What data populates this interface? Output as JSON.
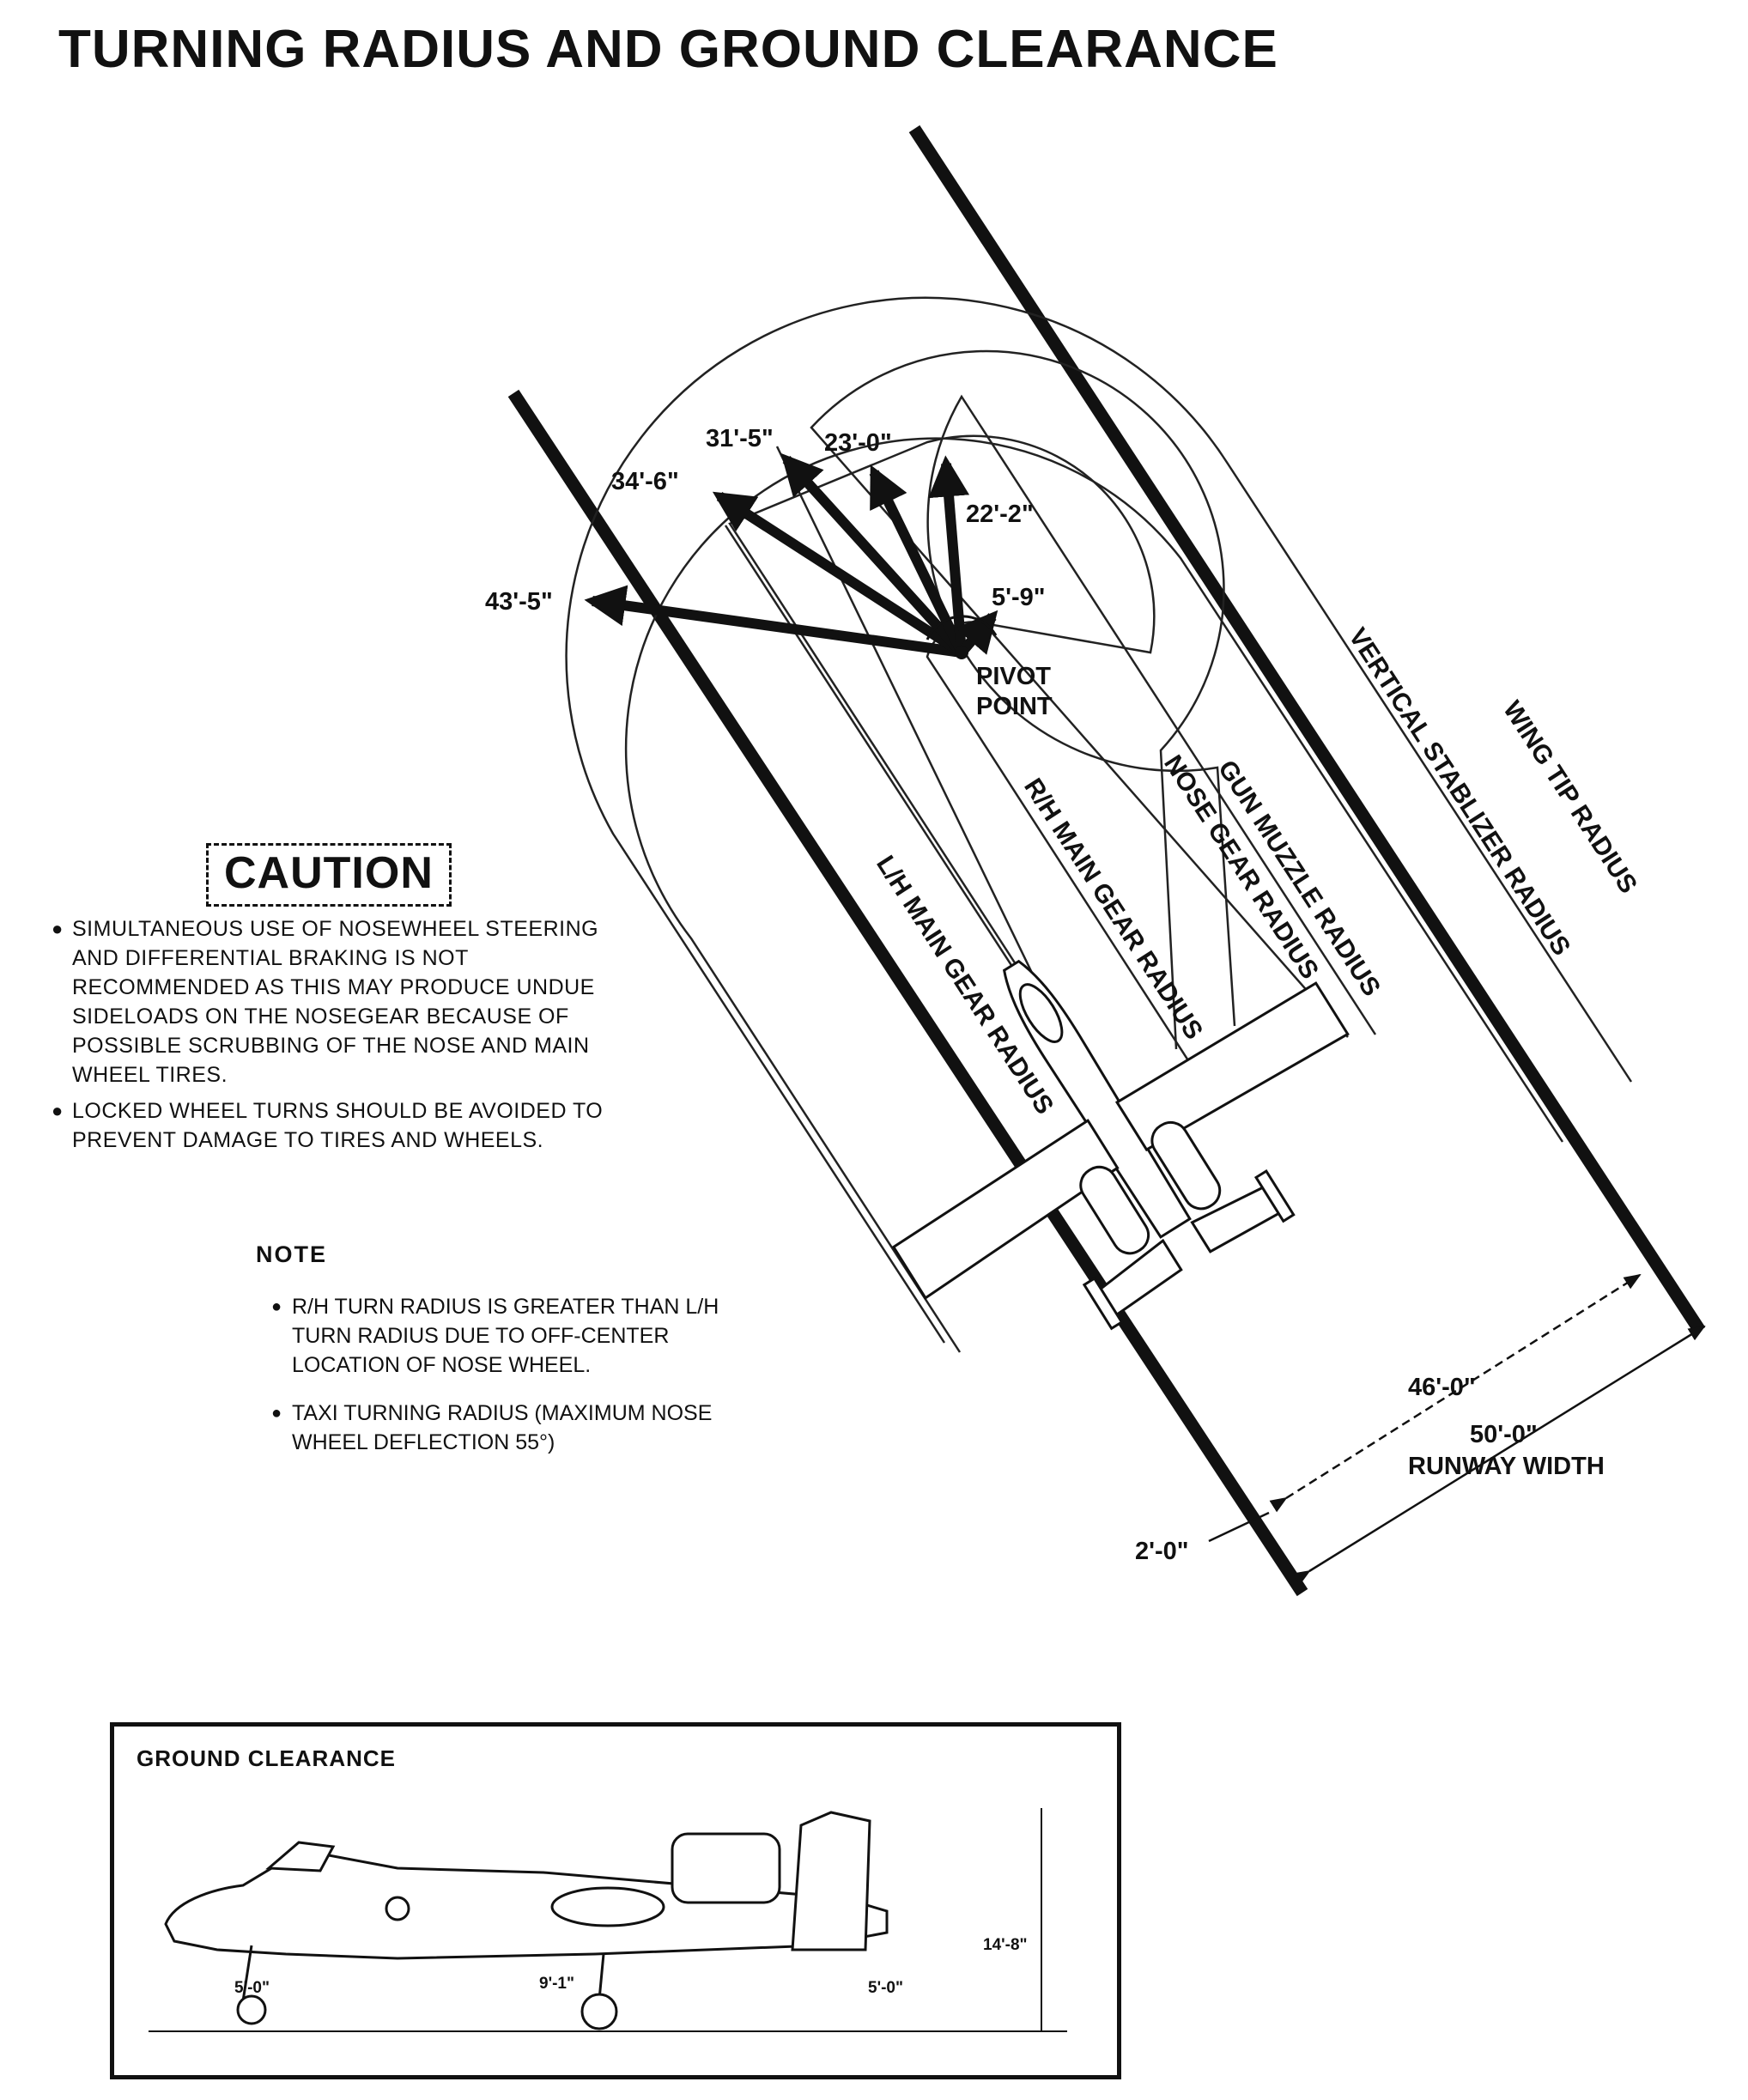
{
  "title": "TURNING RADIUS AND GROUND CLEARANCE",
  "radius_values": {
    "wing_tip": "43'-5\"",
    "vertical_stabilizer": "34'-6\"",
    "gun_muzzle": "31'-5\"",
    "nose_gear": "23'-0\"",
    "rh_main_gear": "22'-2\"",
    "lh_main_gear": "5'-9\""
  },
  "pivot_label": [
    "PIVOT",
    "POINT"
  ],
  "path_labels": {
    "lh_main_gear": "L/H MAIN GEAR RADIUS",
    "rh_main_gear": "R/H MAIN GEAR RADIUS",
    "nose_gear": "NOSE GEAR RADIUS",
    "gun_muzzle": "GUN MUZZLE RADIUS",
    "vertical_stabilizer": "VERTICAL STABLIZER RADIUS",
    "wing_tip": "WING TIP RADIUS"
  },
  "dimensions": {
    "turn_width": "46'-0\"",
    "runway_width_value": "50'-0\"",
    "runway_width_label": "RUNWAY WIDTH",
    "edge_margin": "2'-0\""
  },
  "caution": {
    "heading": "CAUTION",
    "items": [
      "SIMULTANEOUS USE OF NOSEWHEEL STEERING AND DIFFERENTIAL BRAKING IS NOT RECOMMENDED AS THIS MAY PRODUCE UNDUE SIDELOADS ON THE NOSEGEAR BECAUSE OF POSSIBLE SCRUBBING OF THE NOSE AND MAIN WHEEL TIRES.",
      "LOCKED WHEEL TURNS SHOULD BE AVOIDED TO PREVENT DAMAGE TO TIRES AND WHEELS."
    ]
  },
  "note": {
    "heading": "NOTE",
    "items": [
      "R/H TURN RADIUS IS GREATER THAN L/H TURN RADIUS DUE TO OFF-CENTER LOCATION OF NOSE WHEEL.",
      "TAXI TURNING RADIUS (MAXIMUM NOSE WHEEL DEFLECTION 55°)"
    ]
  },
  "ground_clearance": {
    "title": "GROUND CLEARANCE",
    "nose_clearance": "5'-0\"",
    "mid_clearance": "9'-1\"",
    "tail_clearance": "5'-0\"",
    "height": "14'-8\""
  }
}
